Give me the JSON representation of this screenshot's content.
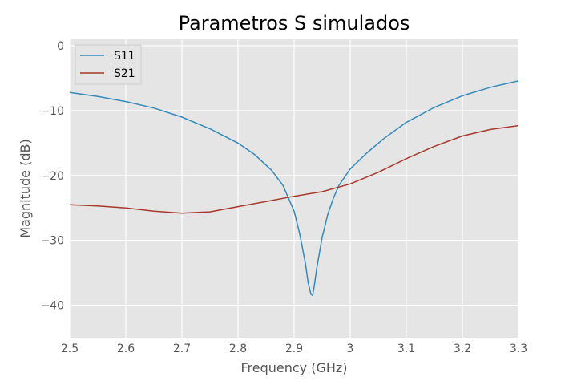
{
  "chart_data": {
    "type": "line",
    "title": "Parametros S simulados",
    "xlabel": "Frequency (GHz)",
    "ylabel": "Magnitude (dB)",
    "xlim": [
      2.5,
      3.3
    ],
    "ylim": [
      -45,
      1
    ],
    "xticks": [
      2.5,
      2.6,
      2.7,
      2.8,
      2.9,
      3.0,
      3.1,
      3.2,
      3.3
    ],
    "xtick_labels": [
      "2.5",
      "2.6",
      "2.7",
      "2.8",
      "2.9",
      "3",
      "3.1",
      "3.2",
      "3.3"
    ],
    "yticks": [
      0,
      -10,
      -20,
      -30,
      -40
    ],
    "ytick_labels": [
      "0",
      "−10",
      "−20",
      "−30",
      "−40"
    ],
    "grid": true,
    "legend_position": "top-left",
    "series": [
      {
        "name": "S11",
        "color": "#348ABD",
        "x": [
          2.5,
          2.55,
          2.6,
          2.65,
          2.7,
          2.75,
          2.8,
          2.83,
          2.86,
          2.88,
          2.9,
          2.91,
          2.92,
          2.925,
          2.93,
          2.933,
          2.936,
          2.94,
          2.95,
          2.96,
          2.97,
          2.98,
          3.0,
          3.03,
          3.06,
          3.1,
          3.15,
          3.2,
          3.25,
          3.3
        ],
        "values": [
          -7.2,
          -7.8,
          -8.6,
          -9.6,
          -11.0,
          -12.8,
          -15.0,
          -16.8,
          -19.2,
          -21.5,
          -25.5,
          -29.0,
          -33.5,
          -36.5,
          -38.3,
          -38.5,
          -37.0,
          -34.5,
          -29.5,
          -26.0,
          -23.5,
          -21.5,
          -19.0,
          -16.5,
          -14.3,
          -11.8,
          -9.5,
          -7.7,
          -6.4,
          -5.4
        ]
      },
      {
        "name": "S21",
        "color": "#A63A2A",
        "x": [
          2.5,
          2.55,
          2.6,
          2.65,
          2.7,
          2.75,
          2.8,
          2.85,
          2.9,
          2.95,
          3.0,
          3.05,
          3.1,
          3.15,
          3.2,
          3.25,
          3.3
        ],
        "values": [
          -24.5,
          -24.7,
          -25.0,
          -25.5,
          -25.8,
          -25.6,
          -24.8,
          -24.0,
          -23.2,
          -22.5,
          -21.3,
          -19.5,
          -17.4,
          -15.5,
          -13.9,
          -12.9,
          -12.3
        ]
      }
    ]
  }
}
